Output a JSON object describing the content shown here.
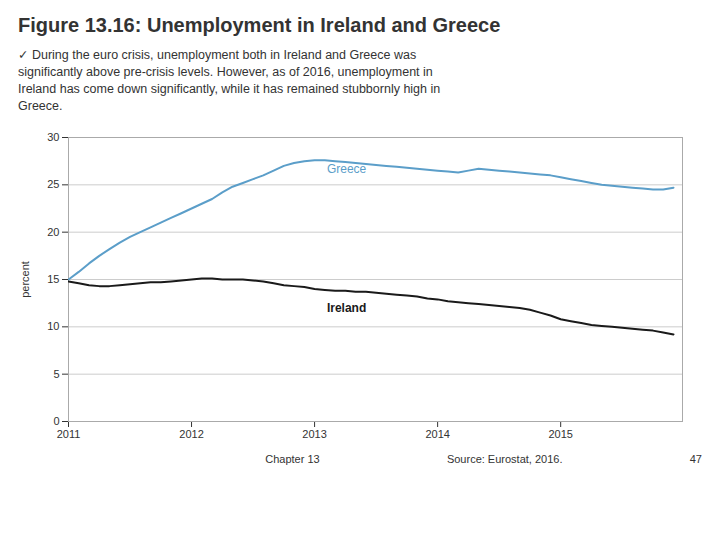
{
  "chart_data": {
    "type": "line",
    "title": "Figure 13.16: Unemployment in Ireland and Greece",
    "subtitle": [
      "✓ During the euro crisis, unemployment both in Ireland and Greece was",
      "significantly above pre-crisis levels. However, as of 2016, unemployment in",
      "Ireland has come down significantly, while it has remained stubbornly high in",
      "Greece."
    ],
    "ylabel": "percent",
    "x": [
      2011.0,
      2011.083,
      2011.167,
      2011.25,
      2011.333,
      2011.417,
      2011.5,
      2011.583,
      2011.667,
      2011.75,
      2011.833,
      2011.917,
      2012.0,
      2012.083,
      2012.167,
      2012.25,
      2012.333,
      2012.417,
      2012.5,
      2012.583,
      2012.667,
      2012.75,
      2012.833,
      2012.917,
      2013.0,
      2013.083,
      2013.167,
      2013.25,
      2013.333,
      2013.417,
      2013.5,
      2013.583,
      2013.667,
      2013.75,
      2013.833,
      2013.917,
      2014.0,
      2014.083,
      2014.167,
      2014.25,
      2014.333,
      2014.417,
      2014.5,
      2014.583,
      2014.667,
      2014.75,
      2014.833,
      2014.917,
      2015.0,
      2015.083,
      2015.167,
      2015.25,
      2015.333,
      2015.417,
      2015.5,
      2015.583,
      2015.667,
      2015.75,
      2015.833,
      2015.917
    ],
    "series": [
      {
        "name": "Greece",
        "color": "#5b9ec9",
        "label_x": 2013.1,
        "label_y": 26.0,
        "values": [
          15.0,
          15.8,
          16.7,
          17.5,
          18.2,
          18.9,
          19.5,
          20.0,
          20.5,
          21.0,
          21.5,
          22.0,
          22.5,
          23.0,
          23.5,
          24.2,
          24.8,
          25.2,
          25.6,
          26.0,
          26.5,
          27.0,
          27.3,
          27.5,
          27.6,
          27.6,
          27.5,
          27.4,
          27.3,
          27.2,
          27.1,
          27.0,
          26.9,
          26.8,
          26.7,
          26.6,
          26.5,
          26.4,
          26.3,
          26.5,
          26.7,
          26.6,
          26.5,
          26.4,
          26.3,
          26.2,
          26.1,
          26.0,
          25.8,
          25.6,
          25.4,
          25.2,
          25.0,
          24.9,
          24.8,
          24.7,
          24.6,
          24.5,
          24.5,
          24.7
        ]
      },
      {
        "name": "Ireland",
        "color": "#1a1a1a",
        "label_x": 2013.1,
        "label_y": 12.7,
        "values": [
          14.8,
          14.6,
          14.4,
          14.3,
          14.3,
          14.4,
          14.5,
          14.6,
          14.7,
          14.7,
          14.8,
          14.9,
          15.0,
          15.1,
          15.1,
          15.0,
          15.0,
          15.0,
          14.9,
          14.8,
          14.6,
          14.4,
          14.3,
          14.2,
          14.0,
          13.9,
          13.8,
          13.8,
          13.7,
          13.7,
          13.6,
          13.5,
          13.4,
          13.3,
          13.2,
          13.0,
          12.9,
          12.7,
          12.6,
          12.5,
          12.4,
          12.3,
          12.2,
          12.1,
          12.0,
          11.8,
          11.5,
          11.2,
          10.8,
          10.6,
          10.4,
          10.2,
          10.1,
          10.0,
          9.9,
          9.8,
          9.7,
          9.6,
          9.4,
          9.2
        ]
      }
    ],
    "xlim": [
      2011,
      2015.99
    ],
    "xticks": [
      2011,
      2012,
      2013,
      2014,
      2015
    ],
    "ylim": [
      0,
      30
    ],
    "yticks": [
      0,
      5,
      10,
      15,
      20,
      25,
      30
    ],
    "grid": true,
    "annotations": [
      "Chapter 13",
      "Source: Eurostat, 2016.",
      "47"
    ]
  }
}
